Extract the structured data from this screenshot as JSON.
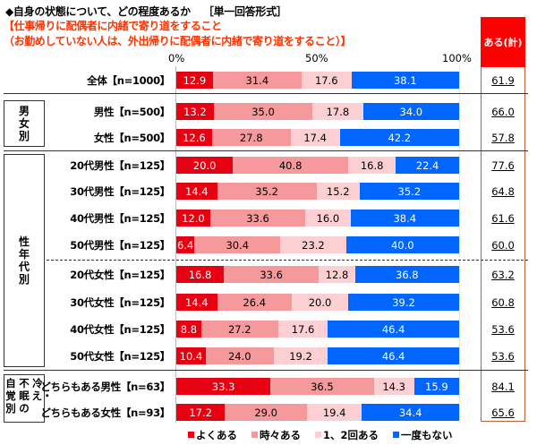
{
  "title": "◆自身の状態について、どの程度あるか",
  "format": "［単一回答形式］",
  "subtitle_line1": "【仕事帰りに配偶者に内緒で寄り道をすること",
  "subtitle_line2": "（お勤めしていない人は、外出帰りに配偶者に内緒で寄り道をすること）】",
  "total_header": "ある(計)",
  "groups": {
    "gender": "男女別",
    "age_gender": "性年代別",
    "sleep": [
      "自覚別",
      "不眠の",
      "冷え・"
    ]
  },
  "colors": {
    "often": "#e60012",
    "sometimes": "#f5999c",
    "once_twice": "#fcd0d2",
    "never": "#0066ff",
    "total_header_bg": "#ff0000",
    "subtitle": "#ff3300"
  },
  "chart_data": {
    "type": "bar",
    "orientation": "horizontal-stacked-100",
    "title": "◆自身の状態について、どの程度あるか ［単一回答形式］",
    "subtitle": "【仕事帰りに配偶者に内緒で寄り道をすること（お勤めしていない人は、外出帰りに配偶者に内緒で寄り道をすること）】",
    "xlabel": "",
    "ylabel": "",
    "xlim": [
      0,
      100
    ],
    "x_ticks": [
      "0%",
      "50%",
      "100%"
    ],
    "legend_position": "bottom",
    "legend": [
      "よくある",
      "時々ある",
      "1、2回ある",
      "一度もない"
    ],
    "categories": [
      "全体【n=1000】",
      "男性【n=500】",
      "女性【n=500】",
      "20代男性【n=125】",
      "30代男性【n=125】",
      "40代男性【n=125】",
      "50代男性【n=125】",
      "20代女性【n=125】",
      "30代女性【n=125】",
      "40代女性【n=125】",
      "50代女性【n=125】",
      "どちらもある男性【n=63】",
      "どちらもある女性【n=93】"
    ],
    "series": [
      {
        "name": "よくある",
        "values": [
          12.9,
          13.2,
          12.6,
          20.0,
          14.4,
          12.0,
          6.4,
          16.8,
          14.4,
          8.8,
          10.4,
          33.3,
          17.2
        ]
      },
      {
        "name": "時々ある",
        "values": [
          31.4,
          35.0,
          27.8,
          40.8,
          35.2,
          33.6,
          30.4,
          33.6,
          26.4,
          27.2,
          24.0,
          36.5,
          29.0
        ]
      },
      {
        "name": "1、2回ある",
        "values": [
          17.6,
          17.8,
          17.4,
          16.8,
          15.2,
          16.0,
          23.2,
          12.8,
          20.0,
          17.6,
          19.2,
          14.3,
          19.4
        ]
      },
      {
        "name": "一度もない",
        "values": [
          38.1,
          34.0,
          42.2,
          22.4,
          35.2,
          38.4,
          40.0,
          36.8,
          39.2,
          46.4,
          46.4,
          15.9,
          34.4
        ]
      }
    ],
    "totals_label": "ある(計)",
    "totals": [
      61.9,
      66.0,
      57.8,
      77.6,
      64.8,
      61.6,
      60.0,
      63.2,
      60.8,
      53.6,
      53.6,
      84.1,
      65.6
    ]
  }
}
